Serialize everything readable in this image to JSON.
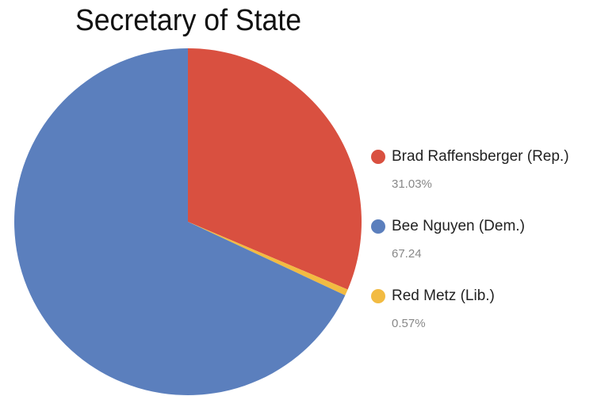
{
  "chart_data": {
    "type": "pie",
    "title": "Secretary of State",
    "categories": [
      "Brad Raffensberger (Rep.)",
      "Red Metz (Lib.)",
      "Bee Nguyen (Dem.)"
    ],
    "values": [
      31.03,
      0.57,
      67.24
    ],
    "value_labels": [
      "31.03%",
      "0.57%",
      "67.24"
    ],
    "colors": [
      "#d95040",
      "#f2bb42",
      "#5b7fbd"
    ]
  }
}
